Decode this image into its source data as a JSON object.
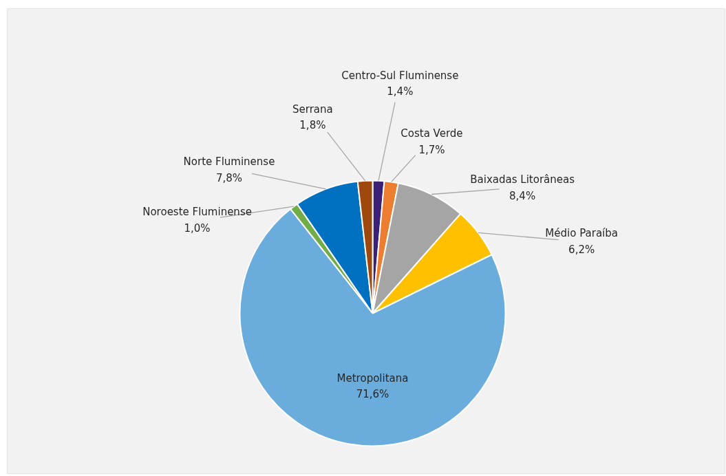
{
  "chart_data": {
    "type": "pie",
    "categories": [
      "Centro-Sul Fluminense",
      "Costa Verde",
      "Baixadas Litorâneas",
      "Médio Paraíba",
      "Metropolitana",
      "Noroeste Fluminense",
      "Norte Fluminense",
      "Serrana"
    ],
    "values": [
      1.4,
      1.7,
      8.4,
      6.2,
      71.6,
      1.0,
      7.8,
      1.8
    ],
    "colors": [
      "#3b2277",
      "#ed7d31",
      "#a5a5a5",
      "#ffc000",
      "#6aacdc",
      "#70ad47",
      "#0070c0",
      "#9e480e"
    ],
    "value_labels": [
      "1,4%",
      "1,7%",
      "8,4%",
      "6,2%",
      "71,6%",
      "1,0%",
      "7,8%",
      "1,8%"
    ]
  }
}
